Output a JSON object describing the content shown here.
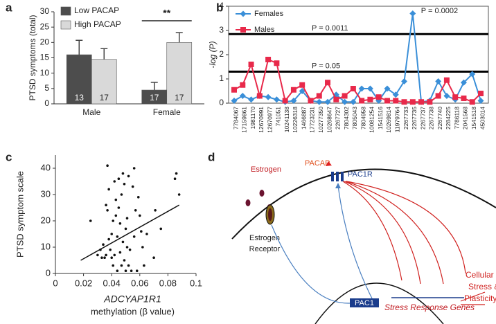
{
  "chart_data": [
    {
      "type": "bar",
      "panel": "a",
      "ylabel": "PTSD symptoms (total)",
      "categories": [
        "Male",
        "Female"
      ],
      "series": [
        {
          "name": "Low PACAP",
          "color": "#4d4d4d",
          "values": [
            16,
            4.5
          ],
          "errors": [
            4.7,
            2.5
          ],
          "n": [
            13,
            17
          ]
        },
        {
          "name": "High PACAP",
          "color": "#d9d9d9",
          "values": [
            14.5,
            20
          ],
          "errors": [
            3.5,
            3.2
          ],
          "n": [
            17,
            17
          ]
        }
      ],
      "annotation": "**",
      "legend": "upper left",
      "ylim": [
        0,
        30
      ],
      "yticks": [
        0,
        5,
        10,
        15,
        20,
        25,
        30
      ]
    },
    {
      "type": "line",
      "panel": "b",
      "ylabel": "-log (P)",
      "categories": [
        "7784067",
        "17159861",
        "1981170",
        "12670991",
        "12670977",
        "741051",
        "10241138",
        "10226318",
        "1466887",
        "17723231",
        "10277350",
        "10268647",
        "2267727",
        "7804302",
        "7805043",
        "7804958",
        "10081254",
        "1541516",
        "10269814",
        "11979764",
        "2267733",
        "2267735",
        "2267737",
        "2267738",
        "2267740",
        "2284225",
        "7786118",
        "2041568",
        "1541518",
        "4503014"
      ],
      "series": [
        {
          "name": "Females",
          "color": "#3a8fd8",
          "marker": "diamond",
          "values": [
            0.1,
            0.3,
            0.15,
            0.3,
            0.25,
            0.15,
            0.05,
            0.1,
            0.5,
            0.1,
            0.05,
            0.05,
            0.35,
            0.05,
            0.05,
            0.6,
            0.6,
            0.1,
            0.6,
            0.35,
            0.9,
            3.7,
            0.05,
            0.1,
            0.9,
            0.3,
            0.15,
            0.85,
            1.2,
            0.1
          ]
        },
        {
          "name": "Males",
          "color": "#e8294a",
          "marker": "square",
          "values": [
            0.55,
            0.75,
            1.6,
            0.3,
            1.8,
            1.65,
            0.1,
            0.55,
            0.75,
            0.1,
            0.3,
            0.85,
            0.15,
            0.3,
            0.6,
            0.1,
            0.15,
            0.25,
            0.1,
            0.1,
            0.05,
            0.05,
            0.05,
            0.05,
            0.3,
            0.95,
            0.25,
            0.2,
            0.05,
            0.4
          ]
        }
      ],
      "hlines": [
        {
          "value": 2.85,
          "label": "P = 0.0011"
        },
        {
          "value": 1.3,
          "label": "P = 0.05"
        }
      ],
      "annotation": "P = 0.0002",
      "legend": "upper left",
      "ylim": [
        0,
        4
      ],
      "yticks": [
        0,
        1,
        2,
        3,
        4
      ]
    },
    {
      "type": "scatter",
      "panel": "c",
      "ylabel": "PTSD symptom scale",
      "xlabel": [
        "ADCYAP1R1",
        "methylation (β value)"
      ],
      "color": "#111111",
      "x": [
        0.025,
        0.03,
        0.032,
        0.033,
        0.034,
        0.035,
        0.036,
        0.036,
        0.037,
        0.037,
        0.038,
        0.038,
        0.039,
        0.04,
        0.04,
        0.041,
        0.041,
        0.042,
        0.042,
        0.043,
        0.043,
        0.044,
        0.044,
        0.045,
        0.045,
        0.046,
        0.046,
        0.047,
        0.047,
        0.048,
        0.048,
        0.049,
        0.049,
        0.05,
        0.05,
        0.051,
        0.051,
        0.052,
        0.052,
        0.053,
        0.054,
        0.055,
        0.056,
        0.056,
        0.057,
        0.058,
        0.059,
        0.06,
        0.061,
        0.062,
        0.063,
        0.065,
        0.07,
        0.071,
        0.075,
        0.085,
        0.086,
        0.088
      ],
      "y": [
        20,
        7,
        9,
        6,
        11,
        6,
        7,
        26,
        24,
        41,
        32,
        13,
        9,
        6,
        15,
        20,
        3,
        35,
        7,
        22,
        28,
        14,
        1,
        25,
        36,
        8,
        19,
        30,
        3,
        38,
        12,
        34,
        5,
        17,
        1,
        21,
        10,
        37,
        3,
        9,
        1,
        33,
        40,
        14,
        24,
        1,
        29,
        22,
        16,
        10,
        3,
        15,
        6,
        24,
        17,
        36,
        38,
        30
      ],
      "trendline": {
        "x": [
          0.018,
          0.088
        ],
        "y": [
          5,
          26
        ]
      },
      "xlim": [
        0,
        0.1
      ],
      "xticks": [
        0,
        0.02,
        0.04,
        0.06,
        0.08,
        0.1
      ],
      "ylim": [
        0,
        45
      ],
      "yticks": [
        0,
        10,
        20,
        30,
        40
      ]
    }
  ],
  "diagram": {
    "panel": "d",
    "ligand": "PACAP",
    "receptor": "PAC1R",
    "hormone": "Estrogen",
    "hormone_receptor": [
      "Estrogen",
      "Receptor"
    ],
    "gene": "PAC1",
    "genes": "Stress Response Genes",
    "outcome": [
      "Cellular",
      "Stress &",
      "Plasticity"
    ]
  }
}
